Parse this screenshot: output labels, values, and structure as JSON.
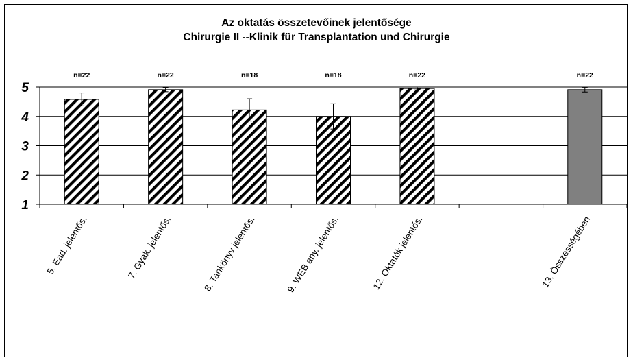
{
  "chart_data": {
    "type": "bar",
    "title": "Az oktatás összetevőinek jelentősége",
    "subtitle": "Chirurgie II --Klinik für Transplantation und Chirurgie",
    "xlabel": "",
    "ylabel": "",
    "ylim": [
      1,
      5
    ],
    "yticks": [
      "1",
      "2",
      "3",
      "4",
      "5"
    ],
    "grid": true,
    "categories": [
      "5. Ead. jelentős.",
      "7. Gyak. jelentős.",
      "8. Tankönyv jelentős.",
      "9. WEB any. jelentős.",
      "12. Oktatók jelentős.",
      "",
      "13. Összességében"
    ],
    "values": [
      4.58,
      4.91,
      4.22,
      4.0,
      4.95,
      null,
      4.91
    ],
    "error": [
      0.22,
      0.07,
      0.38,
      0.43,
      0.05,
      null,
      0.08
    ],
    "n_labels": [
      "n=22",
      "n=22",
      "n=18",
      "n=18",
      "n=22",
      "",
      "n=22"
    ],
    "fill": [
      "hatched",
      "hatched",
      "hatched",
      "hatched",
      "hatched",
      "none",
      "solid"
    ],
    "colors": {
      "hatch": "#000000",
      "solid": "#808080",
      "grid": "#000000"
    }
  }
}
